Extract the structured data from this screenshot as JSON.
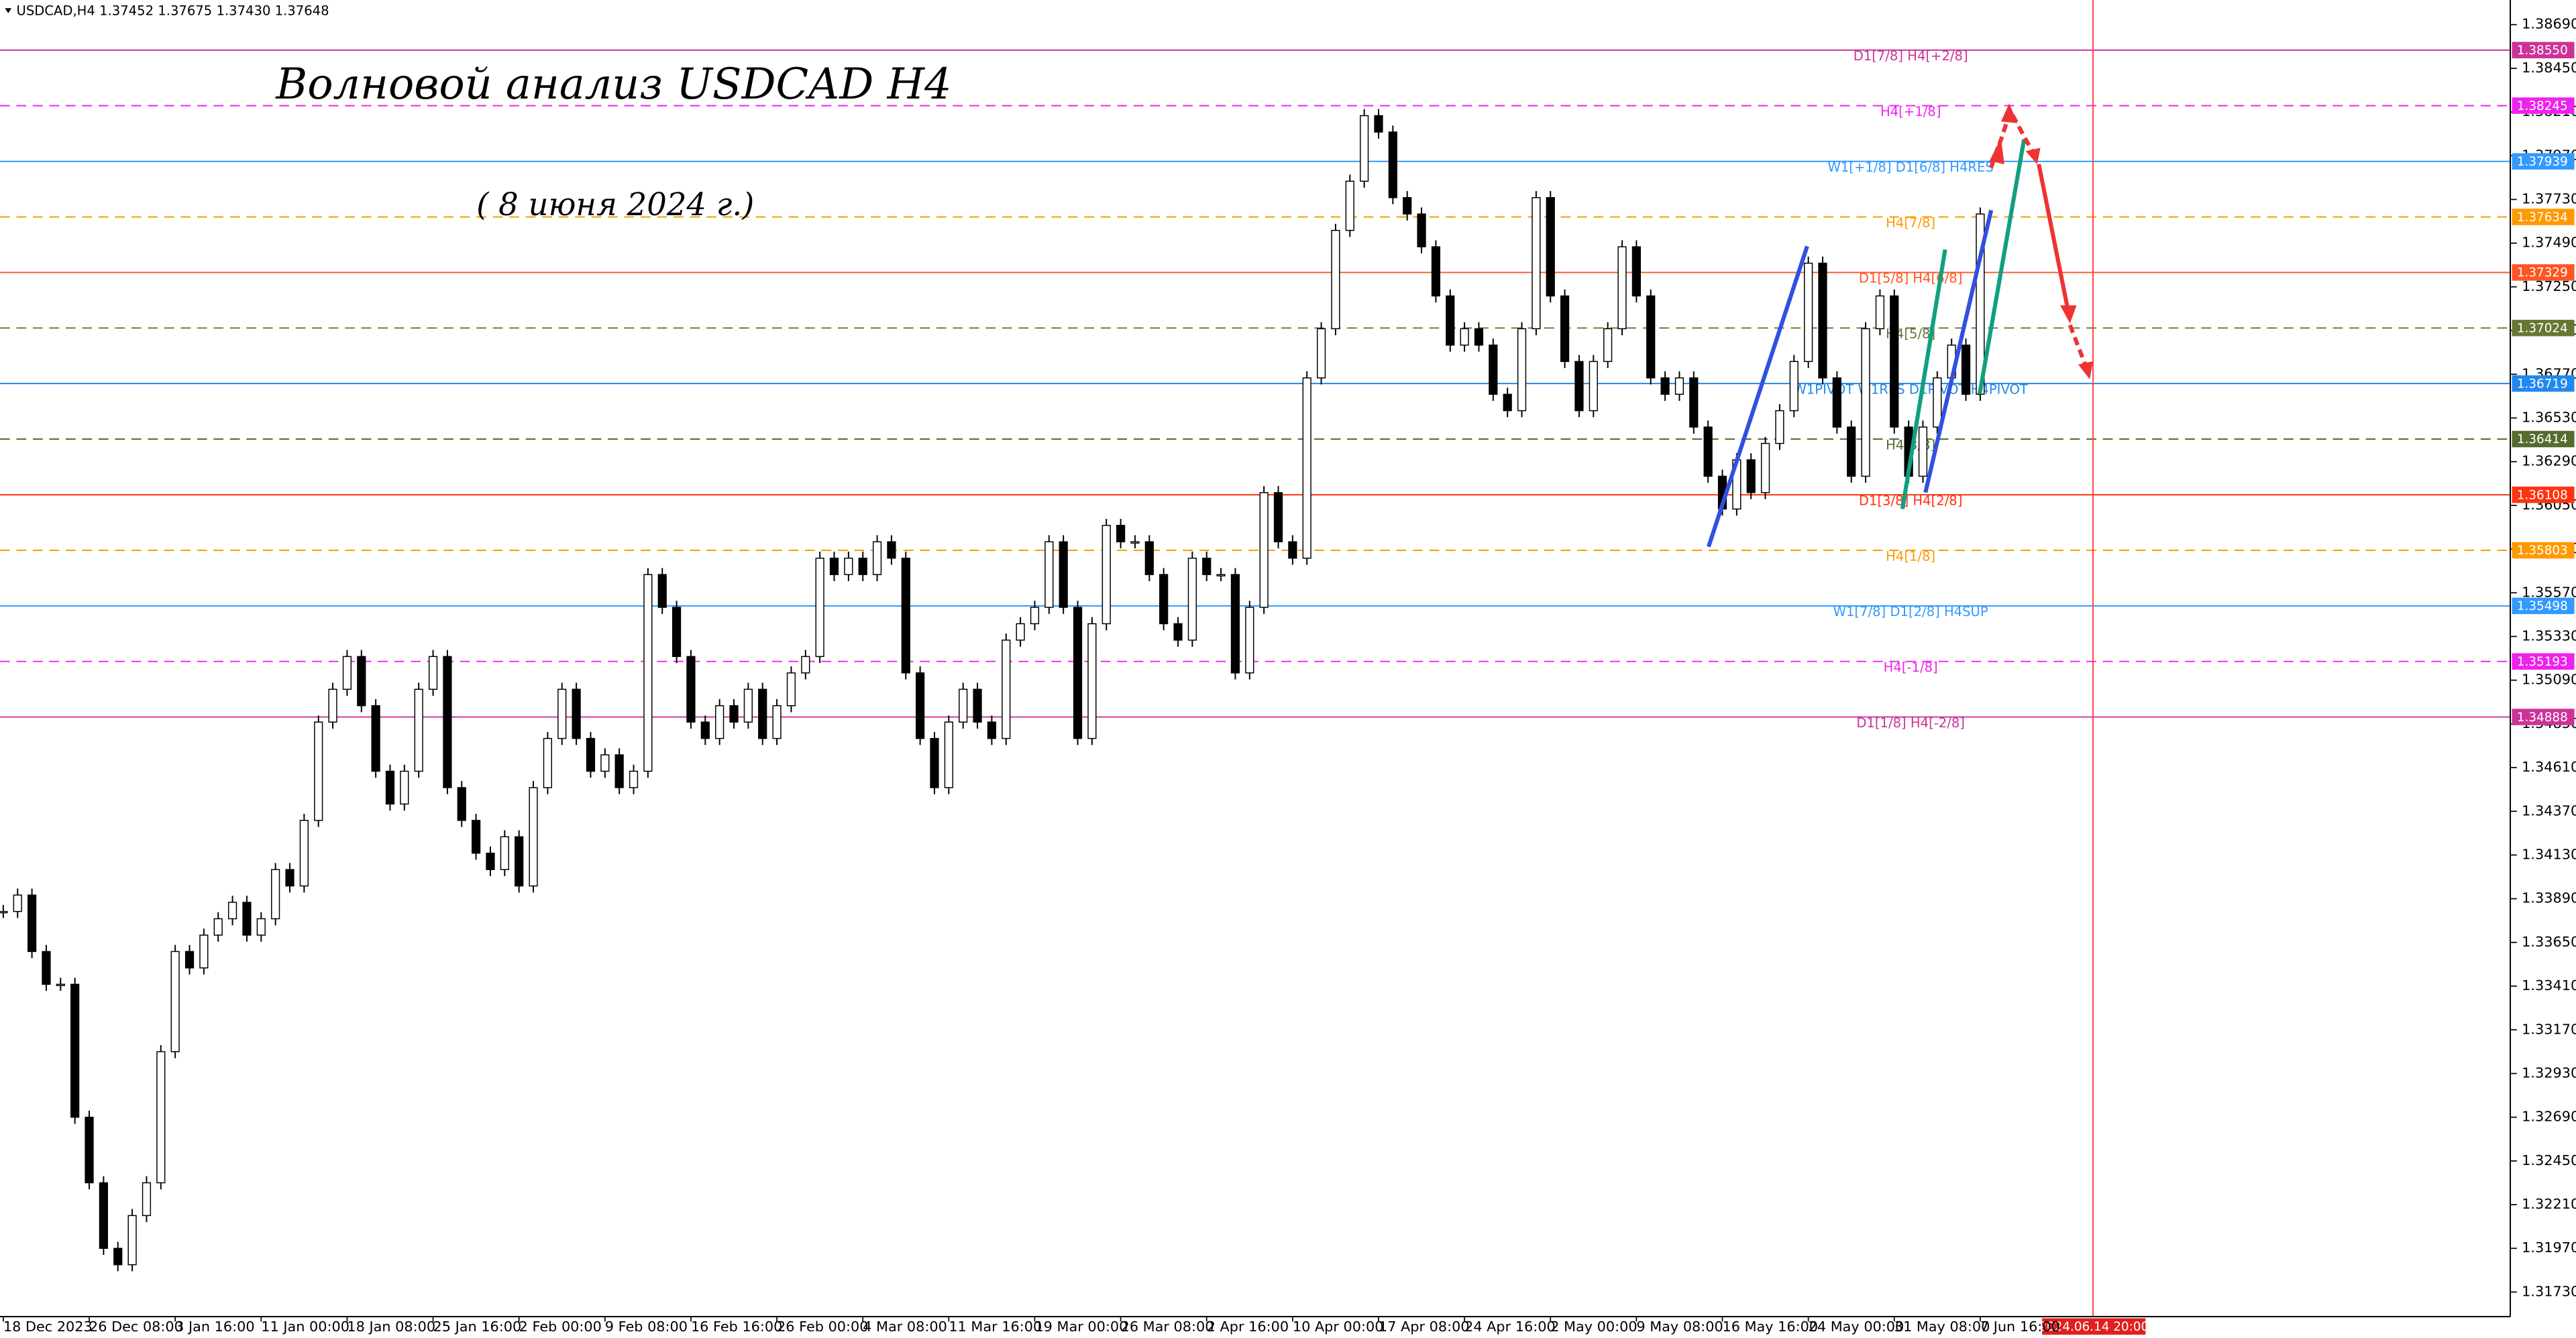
{
  "chart_data": {
    "type": "candlestick",
    "symbol_info": "USDCAD,H4  1.37452 1.37675 1.37430 1.37648",
    "title": "Волновой анализ USDCAD H4",
    "subtitle": "( 8 июня 2024 г.)",
    "date_marker": "2024.06.14 20:00",
    "up_color": "#ffffff",
    "down_color": "#000000",
    "categories": [
      "18 Dec 2023",
      null,
      null,
      null,
      null,
      null,
      "26 Dec 08:00",
      null,
      null,
      null,
      null,
      null,
      "3 Jan 16:00",
      null,
      null,
      null,
      null,
      null,
      "11 Jan 00:00",
      null,
      null,
      null,
      null,
      null,
      "18 Jan 08:00",
      null,
      null,
      null,
      null,
      null,
      "25 Jan 16:00",
      null,
      null,
      null,
      null,
      null,
      "2 Feb 00:00",
      null,
      null,
      null,
      null,
      null,
      "9 Feb 08:00",
      null,
      null,
      null,
      null,
      null,
      "16 Feb 16:00",
      null,
      null,
      null,
      null,
      null,
      "26 Feb 00:00",
      null,
      null,
      null,
      null,
      null,
      "4 Mar 08:00",
      null,
      null,
      null,
      null,
      null,
      "11 Mar 16:00",
      null,
      null,
      null,
      null,
      null,
      "19 Mar 00:00",
      null,
      null,
      null,
      null,
      null,
      "26 Mar 08:00",
      null,
      null,
      null,
      null,
      null,
      "2 Apr 16:00",
      null,
      null,
      null,
      null,
      null,
      "10 Apr 00:00",
      null,
      null,
      null,
      null,
      null,
      "17 Apr 08:00",
      null,
      null,
      null,
      null,
      null,
      "24 Apr 16:00",
      null,
      null,
      null,
      null,
      null,
      "2 May 00:00",
      null,
      null,
      null,
      null,
      null,
      "9 May 08:00",
      null,
      null,
      null,
      null,
      null,
      "16 May 16:00",
      null,
      null,
      null,
      null,
      null,
      "24 May 00:00",
      null,
      null,
      null,
      null,
      null,
      "31 May 08:00",
      null,
      null,
      null,
      null,
      null,
      "7 Jun 16:00"
    ],
    "values": [
      1.3382,
      1.3391,
      1.336,
      1.3342,
      1.3342,
      1.3269,
      1.3233,
      1.3197,
      1.3188,
      1.3215,
      1.3233,
      1.3305,
      1.336,
      1.3351,
      1.3369,
      1.3378,
      1.3387,
      1.3369,
      1.3378,
      1.3405,
      1.3396,
      1.3432,
      1.3486,
      1.3504,
      1.3522,
      1.3495,
      1.3459,
      1.3441,
      1.3459,
      1.3504,
      1.3522,
      1.345,
      1.3432,
      1.3414,
      1.3405,
      1.3423,
      1.3396,
      1.345,
      1.3477,
      1.3504,
      1.3477,
      1.3459,
      1.3468,
      1.345,
      1.3459,
      1.3567,
      1.3549,
      1.3522,
      1.3486,
      1.3477,
      1.3495,
      1.3486,
      1.3504,
      1.3477,
      1.3495,
      1.3513,
      1.3522,
      1.3576,
      1.3567,
      1.3576,
      1.3567,
      1.3585,
      1.3576,
      1.3513,
      1.3477,
      1.345,
      1.3486,
      1.3504,
      1.3486,
      1.3477,
      1.3531,
      1.354,
      1.3549,
      1.3585,
      1.3549,
      1.3477,
      1.354,
      1.3594,
      1.3585,
      1.3585,
      1.3567,
      1.354,
      1.3531,
      1.3576,
      1.3567,
      1.3567,
      1.3513,
      1.3549,
      1.3612,
      1.3585,
      1.3576,
      1.3675,
      1.3702,
      1.3756,
      1.3783,
      1.3819,
      1.381,
      1.3774,
      1.3765,
      1.3747,
      1.372,
      1.3693,
      1.3702,
      1.3693,
      1.3666,
      1.3657,
      1.3702,
      1.3774,
      1.372,
      1.3684,
      1.3657,
      1.3684,
      1.3702,
      1.3747,
      1.372,
      1.3675,
      1.3666,
      1.3675,
      1.3648,
      1.3621,
      1.3603,
      1.363,
      1.3612,
      1.3639,
      1.3657,
      1.3684,
      1.3738,
      1.3675,
      1.3648,
      1.3621,
      1.3702,
      1.372,
      1.3648,
      1.3621,
      1.3648,
      1.3675,
      1.3693,
      1.3666,
      1.3765
    ],
    "ylim": [
      1.31595,
      1.38825
    ],
    "yticks": [
      {
        "value": 1.3173,
        "label": "1.31730"
      },
      {
        "value": 1.3197,
        "label": "1.31970"
      },
      {
        "value": 1.3221,
        "label": "1.32210"
      },
      {
        "value": 1.3245,
        "label": "1.32450"
      },
      {
        "value": 1.3269,
        "label": "1.32690"
      },
      {
        "value": 1.3293,
        "label": "1.32930"
      },
      {
        "value": 1.3317,
        "label": "1.33170"
      },
      {
        "value": 1.3341,
        "label": "1.33410"
      },
      {
        "value": 1.3365,
        "label": "1.33650"
      },
      {
        "value": 1.3389,
        "label": "1.33890"
      },
      {
        "value": 1.3413,
        "label": "1.34130"
      },
      {
        "value": 1.3437,
        "label": "1.34370"
      },
      {
        "value": 1.3461,
        "label": "1.34610"
      },
      {
        "value": 1.3485,
        "label": "1.34850"
      },
      {
        "value": 1.3509,
        "label": "1.35090"
      },
      {
        "value": 1.3533,
        "label": "1.35330"
      },
      {
        "value": 1.3557,
        "label": "1.35570"
      },
      {
        "value": 1.3581,
        "label": "1.35810"
      },
      {
        "value": 1.3605,
        "label": "1.36050"
      },
      {
        "value": 1.3629,
        "label": "1.36290"
      },
      {
        "value": 1.3653,
        "label": "1.36530"
      },
      {
        "value": 1.3677,
        "label": "1.36770"
      },
      {
        "value": 1.3701,
        "label": "1.37010"
      },
      {
        "value": 1.3725,
        "label": "1.37250"
      },
      {
        "value": 1.3749,
        "label": "1.37490"
      },
      {
        "value": 1.3773,
        "label": "1.37730"
      },
      {
        "value": 1.3797,
        "label": "1.37970"
      },
      {
        "value": 1.3821,
        "label": "1.38210"
      },
      {
        "value": 1.3845,
        "label": "1.38450"
      },
      {
        "value": 1.3869,
        "label": "1.38690"
      }
    ],
    "levels": [
      {
        "label": "D1[7/8] H4[+2/8]",
        "value": 1.3855,
        "value_label": "1.38550",
        "color": "#cc3399",
        "dashed": false
      },
      {
        "label": "H4[+1/8]",
        "value": 1.38245,
        "value_label": "1.38245",
        "color": "#ee22ee",
        "dashed": true
      },
      {
        "label": "W1[+1/8] D1[6/8] H4RES",
        "value": 1.37939,
        "value_label": "1.37939",
        "color": "#3399ff",
        "dashed": false
      },
      {
        "label": "H4[7/8]",
        "value": 1.37634,
        "value_label": "1.37634",
        "color": "#ff9900",
        "dashed": true
      },
      {
        "label": "D1[5/8] H4[6/8]",
        "value": 1.37329,
        "value_label": "1.37329",
        "color": "#ff5522",
        "dashed": false
      },
      {
        "label": "H4[5/8]",
        "value": 1.37024,
        "value_label": "1.37024",
        "color": "#667733",
        "dashed": true
      },
      {
        "label": "W1PIVOT W1RES D1PIVOT H4PIVOT",
        "value": 1.36719,
        "value_label": "1.36719",
        "color": "#2288ee",
        "dashed": false
      },
      {
        "label": "H4[3/8]",
        "value": 1.36414,
        "value_label": "1.36414",
        "color": "#556b2f",
        "dashed": true
      },
      {
        "label": "D1[3/8] H4[2/8]",
        "value": 1.36108,
        "value_label": "1.36108",
        "color": "#ff3311",
        "dashed": false
      },
      {
        "label": "H4[1/8]",
        "value": 1.35803,
        "value_label": "1.35803",
        "color": "#ff9900",
        "dashed": true
      },
      {
        "label": "W1[7/8] D1[2/8] H4SUP",
        "value": 1.35498,
        "value_label": "1.35498",
        "color": "#3399ff",
        "dashed": false
      },
      {
        "label": "H4[-1/8]",
        "value": 1.35193,
        "value_label": "1.35193",
        "color": "#ee22ee",
        "dashed": true
      },
      {
        "label": "D1[1/8] H4[-2/8]",
        "value": 1.34888,
        "value_label": "1.34888",
        "color": "#cc3399",
        "dashed": false
      }
    ]
  }
}
